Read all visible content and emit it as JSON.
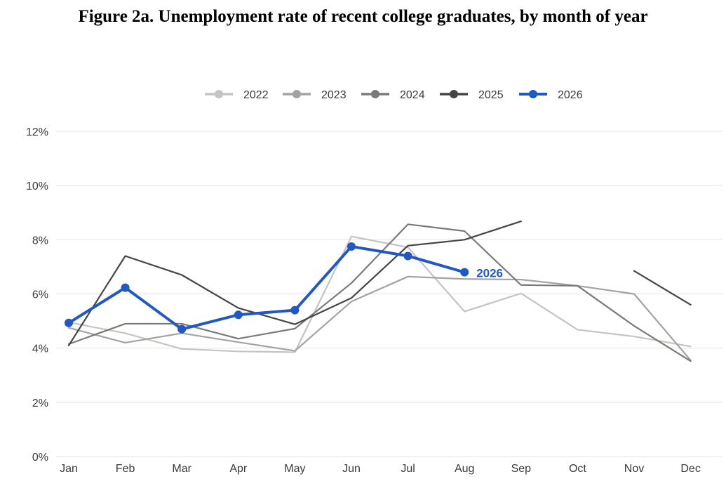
{
  "chart_data": {
    "type": "line",
    "title": "Figure 2a. Unemployment rate of recent college graduates, by month of year",
    "categories": [
      "Jan",
      "Feb",
      "Mar",
      "Apr",
      "May",
      "Jun",
      "Jul",
      "Aug",
      "Sep",
      "Oct",
      "Nov",
      "Dec"
    ],
    "yticks": [
      "0%",
      "2%",
      "4%",
      "6%",
      "8%",
      "10%",
      "12%"
    ],
    "ylim": [
      0,
      12
    ],
    "grid": true,
    "legend_position": "top-center",
    "series": [
      {
        "name": "2022",
        "color": "#c4c4c0",
        "values": [
          4.95,
          4.55,
          3.97,
          3.88,
          3.85,
          8.12,
          7.72,
          5.35,
          6.02,
          4.68,
          4.43,
          4.06
        ]
      },
      {
        "name": "2023",
        "color": "#a3a39f",
        "values": [
          4.75,
          4.2,
          4.55,
          4.22,
          3.9,
          5.72,
          6.64,
          6.55,
          6.53,
          6.3,
          6.0,
          3.55
        ]
      },
      {
        "name": "2024",
        "color": "#7a7a77",
        "values": [
          4.15,
          4.9,
          4.9,
          4.35,
          4.72,
          6.4,
          8.57,
          8.32,
          6.33,
          6.3,
          4.82,
          3.52
        ]
      },
      {
        "name": "2025",
        "color": "#454545",
        "values": [
          4.1,
          7.4,
          6.7,
          5.48,
          4.88,
          5.85,
          7.78,
          8.0,
          8.68,
          null,
          6.85,
          5.6
        ]
      },
      {
        "name": "2026",
        "color": "#2158c2",
        "values": [
          4.93,
          6.23,
          4.7,
          5.23,
          5.4,
          7.75,
          7.4,
          6.8,
          null,
          null,
          null,
          null
        ]
      }
    ],
    "highlight": {
      "series": "2026",
      "end_label": "2026"
    }
  }
}
